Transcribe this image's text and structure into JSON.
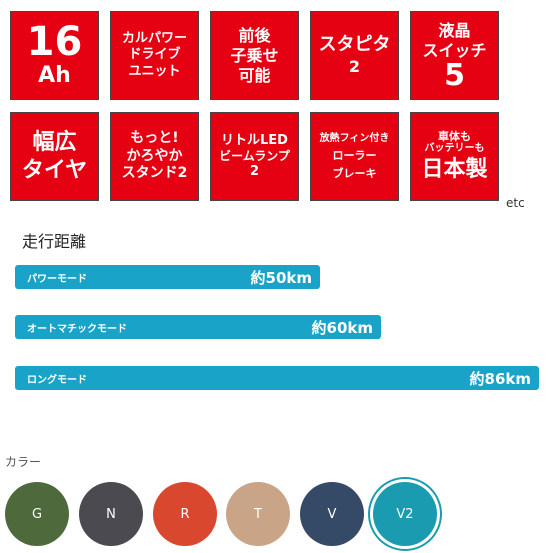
{
  "features": [
    {
      "lines": [
        "16",
        "Ah"
      ]
    },
    {
      "lines": [
        "カルパワー",
        "ドライブ",
        "ユニット"
      ]
    },
    {
      "lines": [
        "前後",
        "子乗せ",
        "可能"
      ]
    },
    {
      "lines": [
        "スタピタ",
        "2"
      ]
    },
    {
      "lines": [
        "液晶",
        "スイッチ",
        "5"
      ]
    },
    {
      "lines": [
        "幅広",
        "タイヤ"
      ]
    },
    {
      "lines": [
        "もっと!",
        "かろやか",
        "スタンド2"
      ]
    },
    {
      "lines": [
        "リトルLED",
        "ビームランプ",
        "2"
      ]
    },
    {
      "lines": [
        "放熱フィン付き",
        "ローラー",
        "ブレーキ"
      ]
    },
    {
      "lines": [
        "車体も",
        "バッテリーも",
        "日本製"
      ]
    }
  ],
  "etc_label": "etc",
  "range": {
    "title": "走行距離",
    "unit": "km",
    "max_km": 86,
    "modes": [
      {
        "name": "パワーモード",
        "distance_label": "約50km",
        "km": 50
      },
      {
        "name": "オートマチックモード",
        "distance_label": "約60km",
        "km": 60
      },
      {
        "name": "ロングモード",
        "distance_label": "約86km",
        "km": 86
      }
    ],
    "bar_color": "#1aa3c8"
  },
  "colors": {
    "title": "カラー",
    "options": [
      {
        "code": "G",
        "hex": "#4e6a3d",
        "selected": false
      },
      {
        "code": "N",
        "hex": "#4b4a50",
        "selected": false
      },
      {
        "code": "R",
        "hex": "#d9472e",
        "selected": false
      },
      {
        "code": "T",
        "hex": "#c9a486",
        "selected": false
      },
      {
        "code": "V",
        "hex": "#344a66",
        "selected": false
      },
      {
        "code": "V2",
        "hex": "#1b9bb0",
        "selected": true
      }
    ]
  },
  "tile_color": "#e50012"
}
